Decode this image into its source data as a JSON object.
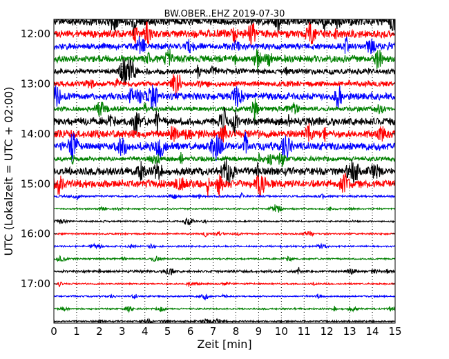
{
  "chart_data": {
    "type": "line",
    "title": "BW.OBER..EHZ 2019-07-30",
    "xlabel": "Zeit  [min]",
    "ylabel": "UTC (Lokalzeit = UTC + 02:00)",
    "xlim": [
      0,
      15
    ],
    "x_ticks": [
      "0",
      "1",
      "2",
      "3",
      "4",
      "5",
      "6",
      "7",
      "8",
      "9",
      "10",
      "11",
      "12",
      "13",
      "14",
      "15"
    ],
    "y_ticks": [
      "12:00",
      "13:00",
      "14:00",
      "15:00",
      "16:00",
      "17:00"
    ],
    "grid": "vertical-dotted",
    "trace_colors": [
      "#000000",
      "#ff0000",
      "#0000ff",
      "#008000"
    ],
    "traces": [
      {
        "start": "11:45",
        "amplitude": 1.0
      },
      {
        "start": "12:00",
        "amplitude": 1.0
      },
      {
        "start": "12:15",
        "amplitude": 0.8
      },
      {
        "start": "12:30",
        "amplitude": 0.9
      },
      {
        "start": "12:45",
        "amplitude": 0.7
      },
      {
        "start": "13:00",
        "amplitude": 0.7
      },
      {
        "start": "13:15",
        "amplitude": 0.9
      },
      {
        "start": "13:30",
        "amplitude": 0.6
      },
      {
        "start": "13:45",
        "amplitude": 1.0
      },
      {
        "start": "14:00",
        "amplitude": 1.0
      },
      {
        "start": "14:15",
        "amplitude": 1.0
      },
      {
        "start": "14:30",
        "amplitude": 0.6
      },
      {
        "start": "14:45",
        "amplitude": 1.0
      },
      {
        "start": "15:00",
        "amplitude": 1.0
      },
      {
        "start": "15:15",
        "amplitude": 0.25
      },
      {
        "start": "15:30",
        "amplitude": 0.2
      },
      {
        "start": "15:45",
        "amplitude": 0.2
      },
      {
        "start": "16:00",
        "amplitude": 0.2
      },
      {
        "start": "16:15",
        "amplitude": 0.2
      },
      {
        "start": "16:30",
        "amplitude": 0.2
      },
      {
        "start": "16:45",
        "amplitude": 0.3
      },
      {
        "start": "17:00",
        "amplitude": 0.2
      },
      {
        "start": "17:15",
        "amplitude": 0.2
      },
      {
        "start": "17:30",
        "amplitude": 0.2
      },
      {
        "start": "17:45",
        "amplitude": 0.2
      }
    ]
  }
}
